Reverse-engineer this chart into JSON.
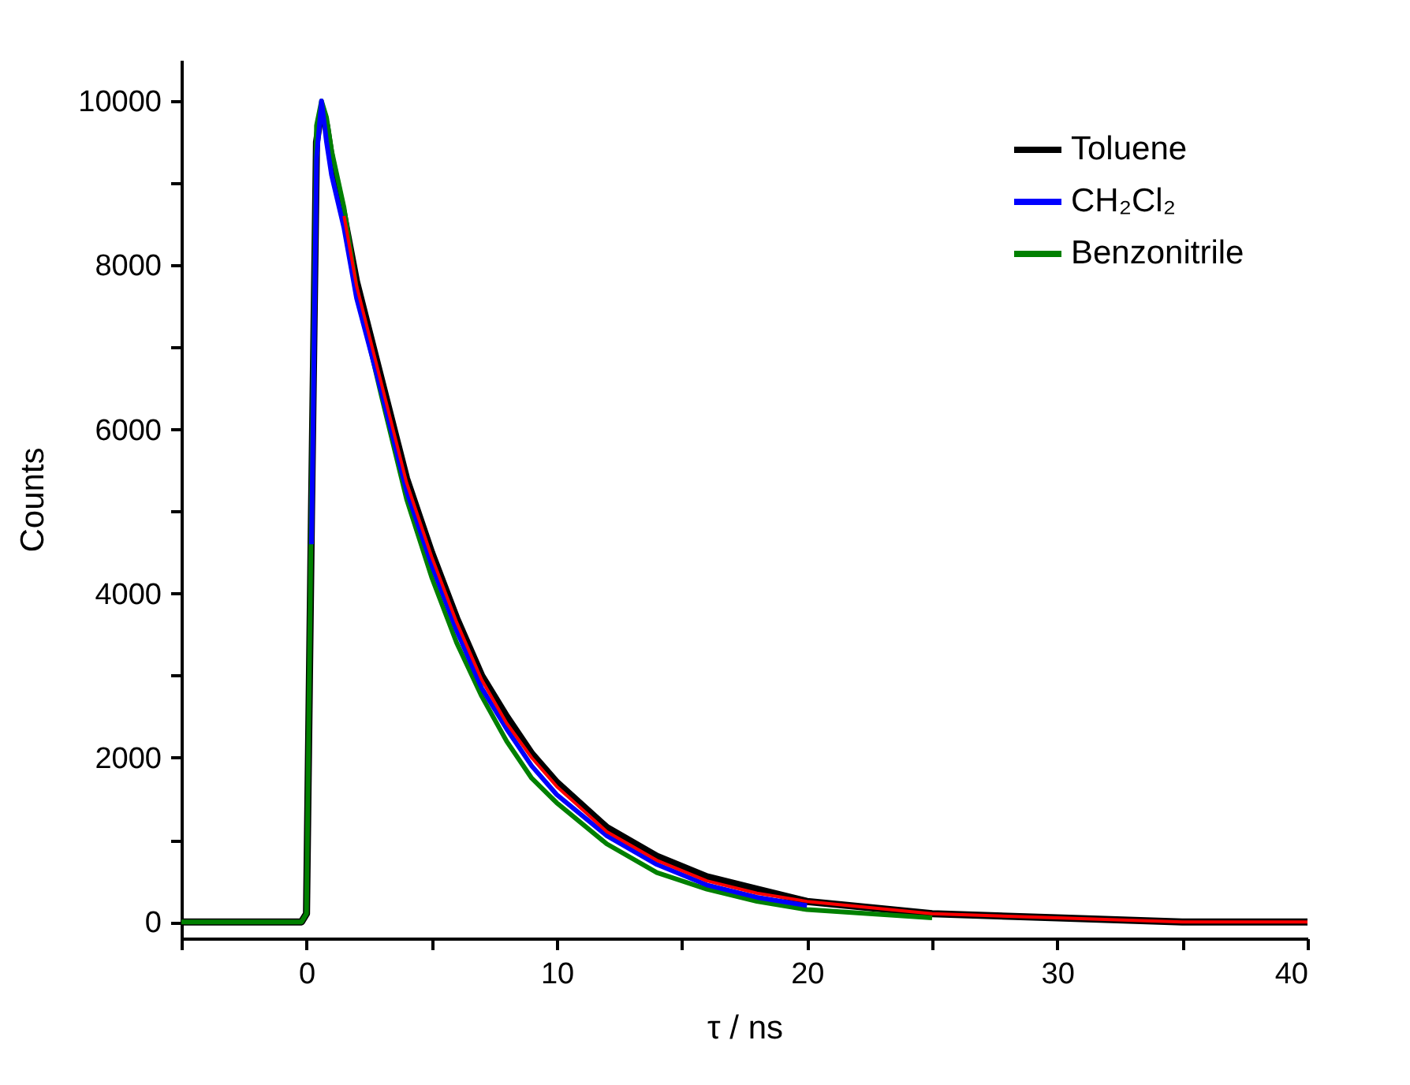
{
  "chart_data": {
    "type": "line",
    "xlabel": "τ / ns",
    "ylabel": "Counts",
    "x": [
      -5,
      -1,
      -0.2,
      0,
      0.2,
      0.4,
      0.6,
      0.8,
      1,
      1.5,
      2,
      3,
      4,
      5,
      6,
      7,
      8,
      9,
      10,
      12,
      14,
      16,
      18,
      20,
      25,
      30,
      35,
      40
    ],
    "series": [
      {
        "name": "Toluene",
        "color": "#000000",
        "values": [
          0,
          0,
          0,
          100,
          5000,
          9500,
          9900,
          9700,
          9300,
          8600,
          7800,
          6600,
          5400,
          4500,
          3700,
          3000,
          2500,
          2050,
          1700,
          1150,
          800,
          550,
          400,
          250,
          100,
          50,
          0,
          0
        ]
      },
      {
        "name": "CH₂Cl₂",
        "color": "#0000ff",
        "values": [
          null,
          null,
          null,
          null,
          4600,
          9300,
          10000,
          9500,
          9100,
          8450,
          7600,
          6450,
          5250,
          4350,
          3550,
          2850,
          2350,
          1900,
          1550,
          1050,
          700,
          450,
          300,
          200,
          null,
          null,
          null,
          null
        ]
      },
      {
        "name": "Benzonitrile",
        "color": "#008000",
        "values": [
          0,
          0,
          0,
          100,
          5200,
          9700,
          10000,
          9800,
          9400,
          8700,
          7700,
          6400,
          5150,
          4200,
          3400,
          2750,
          2200,
          1750,
          1450,
          950,
          600,
          400,
          250,
          150,
          50,
          null,
          null,
          null
        ]
      },
      {
        "color": "#ff0000",
        "x": [
          1.5,
          2,
          3,
          4,
          5,
          6,
          7,
          8,
          9,
          10,
          12,
          14,
          16,
          18,
          20,
          25,
          30,
          35,
          40
        ],
        "values": [
          8600,
          7750,
          6550,
          5350,
          4450,
          3650,
          2950,
          2420,
          2000,
          1650,
          1100,
          750,
          500,
          350,
          250,
          100,
          50,
          0,
          0
        ]
      }
    ],
    "xlim": [
      -5,
      40
    ],
    "ylim": [
      -200,
      10500
    ],
    "xticks": [
      {
        "value": -5,
        "label": null
      },
      0,
      {
        "value": 5,
        "label": null
      },
      10,
      {
        "value": 15,
        "label": null
      },
      20,
      {
        "value": 25,
        "label": null
      },
      30,
      {
        "value": 35,
        "label": null
      },
      40
    ],
    "yticks": [
      0,
      {
        "value": 1000,
        "label": null
      },
      2000,
      {
        "value": 3000,
        "label": null
      },
      4000,
      {
        "value": 5000,
        "label": null
      },
      6000,
      {
        "value": 7000,
        "label": null
      },
      8000,
      {
        "value": 9000,
        "label": null
      },
      10000
    ],
    "legend": "top right",
    "grid": false,
    "line_style": "solid"
  }
}
